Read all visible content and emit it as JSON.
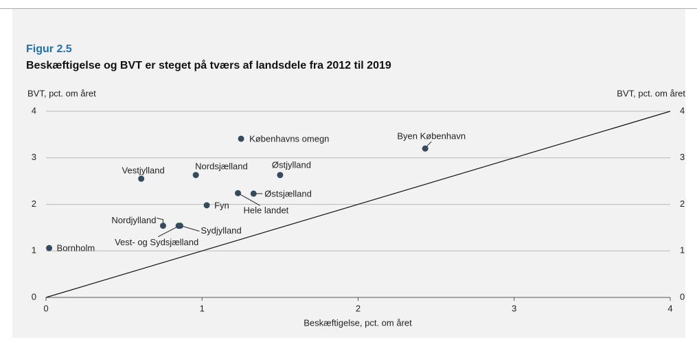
{
  "chart_data": {
    "type": "scatter",
    "figure_label": "Figur 2.5",
    "title": "Beskæftigelse og BVT er steget på tværs af landsdele fra 2012 til 2019",
    "xlabel": "Beskæftigelse, pct. om året",
    "ylabel": "BVT, pct. om året",
    "color": "#344a5e",
    "points": [
      "Bornholm",
      "Vestjylland",
      "Nordsjælland",
      "Københavns omegn",
      "Østjylland",
      "Byen København",
      "Hele landet",
      "Østsjælland",
      "Fyn",
      "Nordjylland",
      "Vest- og Sydsjælland",
      "Sydjylland"
    ],
    "x": [
      0.02,
      0.61,
      0.96,
      1.25,
      1.5,
      2.43,
      1.23,
      1.33,
      1.03,
      0.75,
      0.85,
      0.86
    ],
    "y": [
      1.06,
      2.55,
      2.63,
      3.41,
      2.63,
      3.2,
      2.24,
      2.23,
      1.98,
      1.54,
      1.54,
      1.54
    ],
    "xlim": [
      0,
      4
    ],
    "ylim": [
      0,
      4
    ],
    "xticks": [
      0,
      1,
      2,
      3,
      4
    ],
    "yticks": [
      0,
      1,
      2,
      3,
      4
    ],
    "grid": true
  }
}
